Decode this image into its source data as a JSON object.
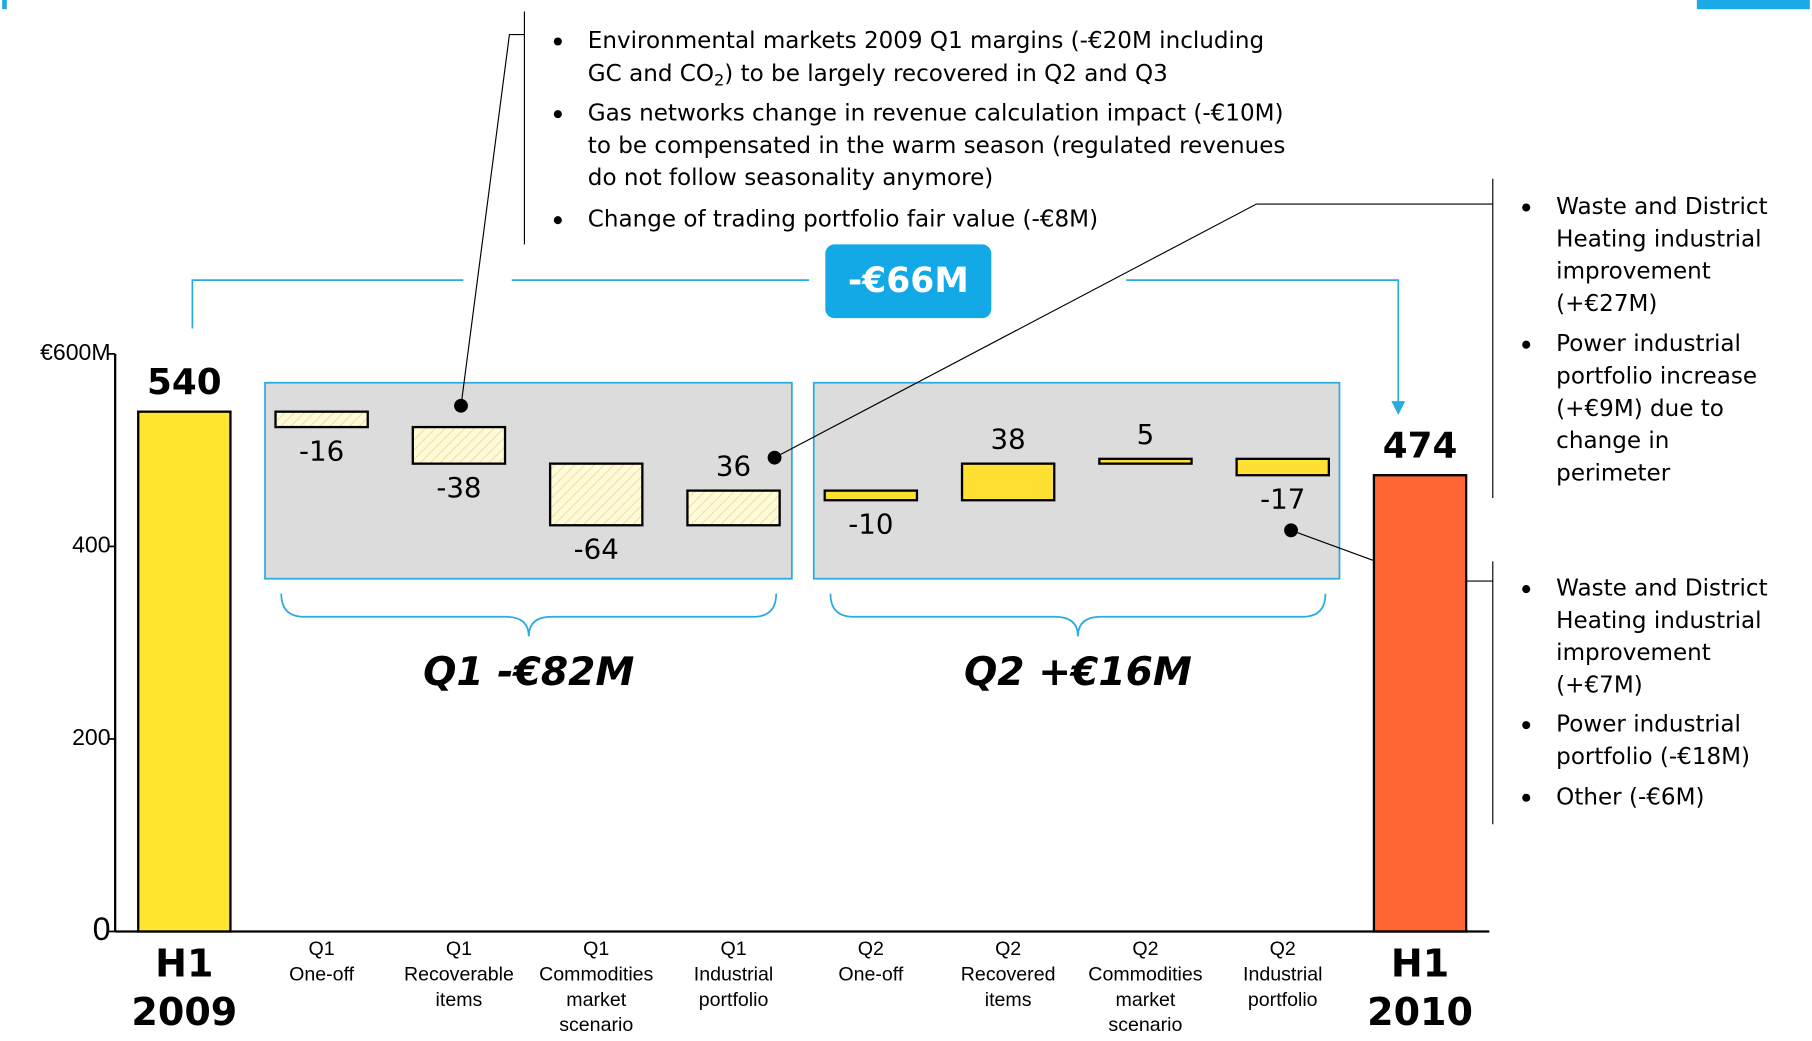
{
  "chart_data": {
    "type": "waterfall",
    "categories": [
      [
        "H1",
        "2009"
      ],
      [
        "Q1",
        "One-off"
      ],
      [
        "Q1",
        "Recoverable",
        "items"
      ],
      [
        "Q1",
        "Commodities",
        "market",
        "scenario"
      ],
      [
        "Q1",
        "Industrial",
        "portfolio"
      ],
      [
        "Q2",
        "One-off"
      ],
      [
        "Q2",
        "Recovered",
        "items"
      ],
      [
        "Q2",
        "Commodities",
        "market",
        "scenario"
      ],
      [
        "Q2",
        "Industrial",
        "portfolio"
      ],
      [
        "H1",
        "2010"
      ]
    ],
    "kinds": [
      "total",
      "step",
      "step",
      "step",
      "step",
      "step",
      "step",
      "step",
      "step",
      "total"
    ],
    "values": [
      540,
      -16,
      -38,
      -64,
      36,
      -10,
      38,
      5,
      -17,
      474
    ],
    "colors": [
      "#ffe52e",
      "#fffbd8",
      "#fffbd8",
      "#fffbd8",
      "#fffbd8",
      "#ffe033",
      "#ffe033",
      "#ffe033",
      "#ffe033",
      "#ff6633"
    ],
    "hatched": [
      false,
      true,
      true,
      true,
      true,
      false,
      false,
      false,
      false,
      false
    ],
    "ylim": [
      0,
      600
    ],
    "yticks": [
      0,
      200,
      400,
      {
        "value": 600,
        "label": "€600M"
      }
    ],
    "total_change": "-€66M",
    "groups": [
      {
        "label": "Q1 -€82M",
        "from": 1,
        "to": 4
      },
      {
        "label": "Q2 +€16M",
        "from": 5,
        "to": 8
      }
    ],
    "notes": [
      {
        "bullets": [
          [
            "Environmental markets 2009 Q1 margins (-€20M including",
            {
              "text": "GC and CO",
              "sub": "2",
              "rest": ") to be largely recovered in Q2 and Q3"
            }
          ],
          [
            "Gas networks change in revenue calculation impact (-€10M)",
            "to be compensated in the warm season (regulated revenues",
            "do not follow seasonality anymore)"
          ],
          [
            "Change of trading portfolio fair value (-€8M)"
          ]
        ]
      },
      {
        "bullets": [
          [
            "Waste and District",
            "Heating industrial",
            "improvement",
            "(+€27M)"
          ],
          [
            "Power industrial",
            "portfolio increase",
            "(+€9M) due to",
            "change in",
            "perimeter"
          ]
        ]
      },
      {
        "bullets": [
          [
            "Waste and District",
            "Heating industrial",
            "improvement",
            "(+€7M)"
          ],
          [
            "Power industrial",
            "portfolio (-€18M)"
          ],
          [
            "Other (-€6M)"
          ]
        ]
      }
    ]
  }
}
